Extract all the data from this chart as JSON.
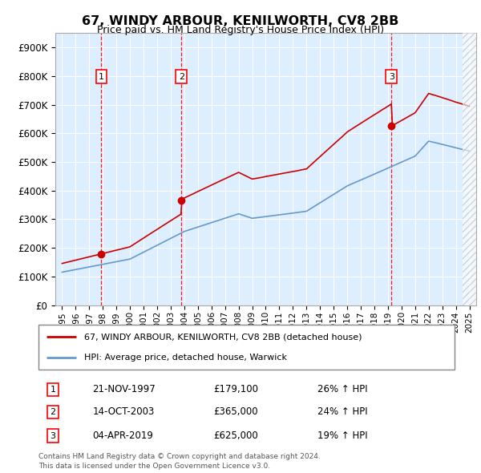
{
  "title": "67, WINDY ARBOUR, KENILWORTH, CV8 2BB",
  "subtitle": "Price paid vs. HM Land Registry's House Price Index (HPI)",
  "property_label": "67, WINDY ARBOUR, KENILWORTH, CV8 2BB (detached house)",
  "hpi_label": "HPI: Average price, detached house, Warwick",
  "transactions": [
    {
      "num": 1,
      "date": "21-NOV-1997",
      "year": 1997.89,
      "price": 179100,
      "pct": "26%",
      "dir": "↑"
    },
    {
      "num": 2,
      "date": "14-OCT-2003",
      "year": 2003.79,
      "price": 365000,
      "pct": "24%",
      "dir": "↑"
    },
    {
      "num": 3,
      "date": "04-APR-2019",
      "year": 2019.26,
      "price": 625000,
      "pct": "19%",
      "dir": "↑"
    }
  ],
  "footer_line1": "Contains HM Land Registry data © Crown copyright and database right 2024.",
  "footer_line2": "This data is licensed under the Open Government Licence v3.0.",
  "property_color": "#cc0000",
  "hpi_color": "#6699cc",
  "background_color": "#ddeeff",
  "ylim": [
    0,
    950000
  ],
  "yticks": [
    0,
    100000,
    200000,
    300000,
    400000,
    500000,
    600000,
    700000,
    800000,
    900000
  ],
  "xmin": 1994.5,
  "xmax": 2025.5
}
